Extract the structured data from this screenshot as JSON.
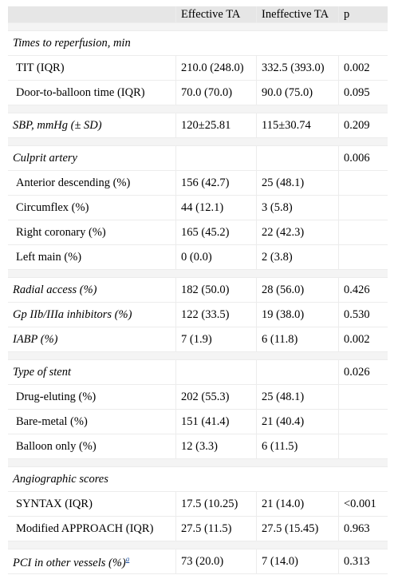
{
  "header": {
    "col_label": "",
    "col_effective": "Effective TA",
    "col_ineffective": "Ineffective TA",
    "col_p": "p"
  },
  "rows": {
    "reperfusion_title": "Times to reperfusion, min",
    "tit": {
      "label": "TIT (IQR)",
      "eff": "210.0 (248.0)",
      "ineff": "332.5 (393.0)",
      "p": "0.002"
    },
    "dtb": {
      "label": "Door-to-balloon time (IQR)",
      "eff": "70.0 (70.0)",
      "ineff": "90.0 (75.0)",
      "p": "0.095"
    },
    "sbp": {
      "label": "SBP, mmHg (± SD)",
      "eff": "120±25.81",
      "ineff": "115±30.74",
      "p": "0.209"
    },
    "culprit": {
      "label": "Culprit artery",
      "p": "0.006"
    },
    "lad": {
      "label": "Anterior descending (%)",
      "eff": "156 (42.7)",
      "ineff": "25 (48.1)"
    },
    "cx": {
      "label": "Circumflex (%)",
      "eff": "44 (12.1)",
      "ineff": "3 (5.8)"
    },
    "rca": {
      "label": "Right coronary (%)",
      "eff": "165 (45.2)",
      "ineff": "22 (42.3)"
    },
    "lm": {
      "label": "Left main (%)",
      "eff": "0 (0.0)",
      "ineff": "2 (3.8)"
    },
    "radial": {
      "label": "Radial access (%)",
      "eff": "182 (50.0)",
      "ineff": "28 (56.0)",
      "p": "0.426"
    },
    "gp": {
      "label": "Gp IIb/IIIa inhibitors (%)",
      "eff": "122 (33.5)",
      "ineff": "19 (38.0)",
      "p": "0.530"
    },
    "iabp": {
      "label": "IABP (%)",
      "eff": "7 (1.9)",
      "ineff": "6 (11.8)",
      "p": "0.002"
    },
    "stent": {
      "label": "Type of stent",
      "p": "0.026"
    },
    "des": {
      "label": "Drug-eluting (%)",
      "eff": "202 (55.3)",
      "ineff": "25 (48.1)"
    },
    "bms": {
      "label": "Bare-metal (%)",
      "eff": "151 (41.4)",
      "ineff": "21 (40.4)"
    },
    "balloon": {
      "label": "Balloon only (%)",
      "eff": "12 (3.3)",
      "ineff": "6 (11.5)"
    },
    "angio_title": "Angiographic scores",
    "syntax": {
      "label": "SYNTAX (IQR)",
      "eff": "17.5 (10.25)",
      "ineff": "21 (14.0)",
      "p": "<0.001"
    },
    "approach": {
      "label": "Modified APPROACH (IQR)",
      "eff": "27.5 (11.5)",
      "ineff": "27.5 (15.45)",
      "p": "0.963"
    },
    "pci": {
      "label": "PCI in other vessels (%)",
      "footnote": "a",
      "eff": "73 (20.0)",
      "ineff": "7 (14.0)",
      "p": "0.313"
    }
  }
}
